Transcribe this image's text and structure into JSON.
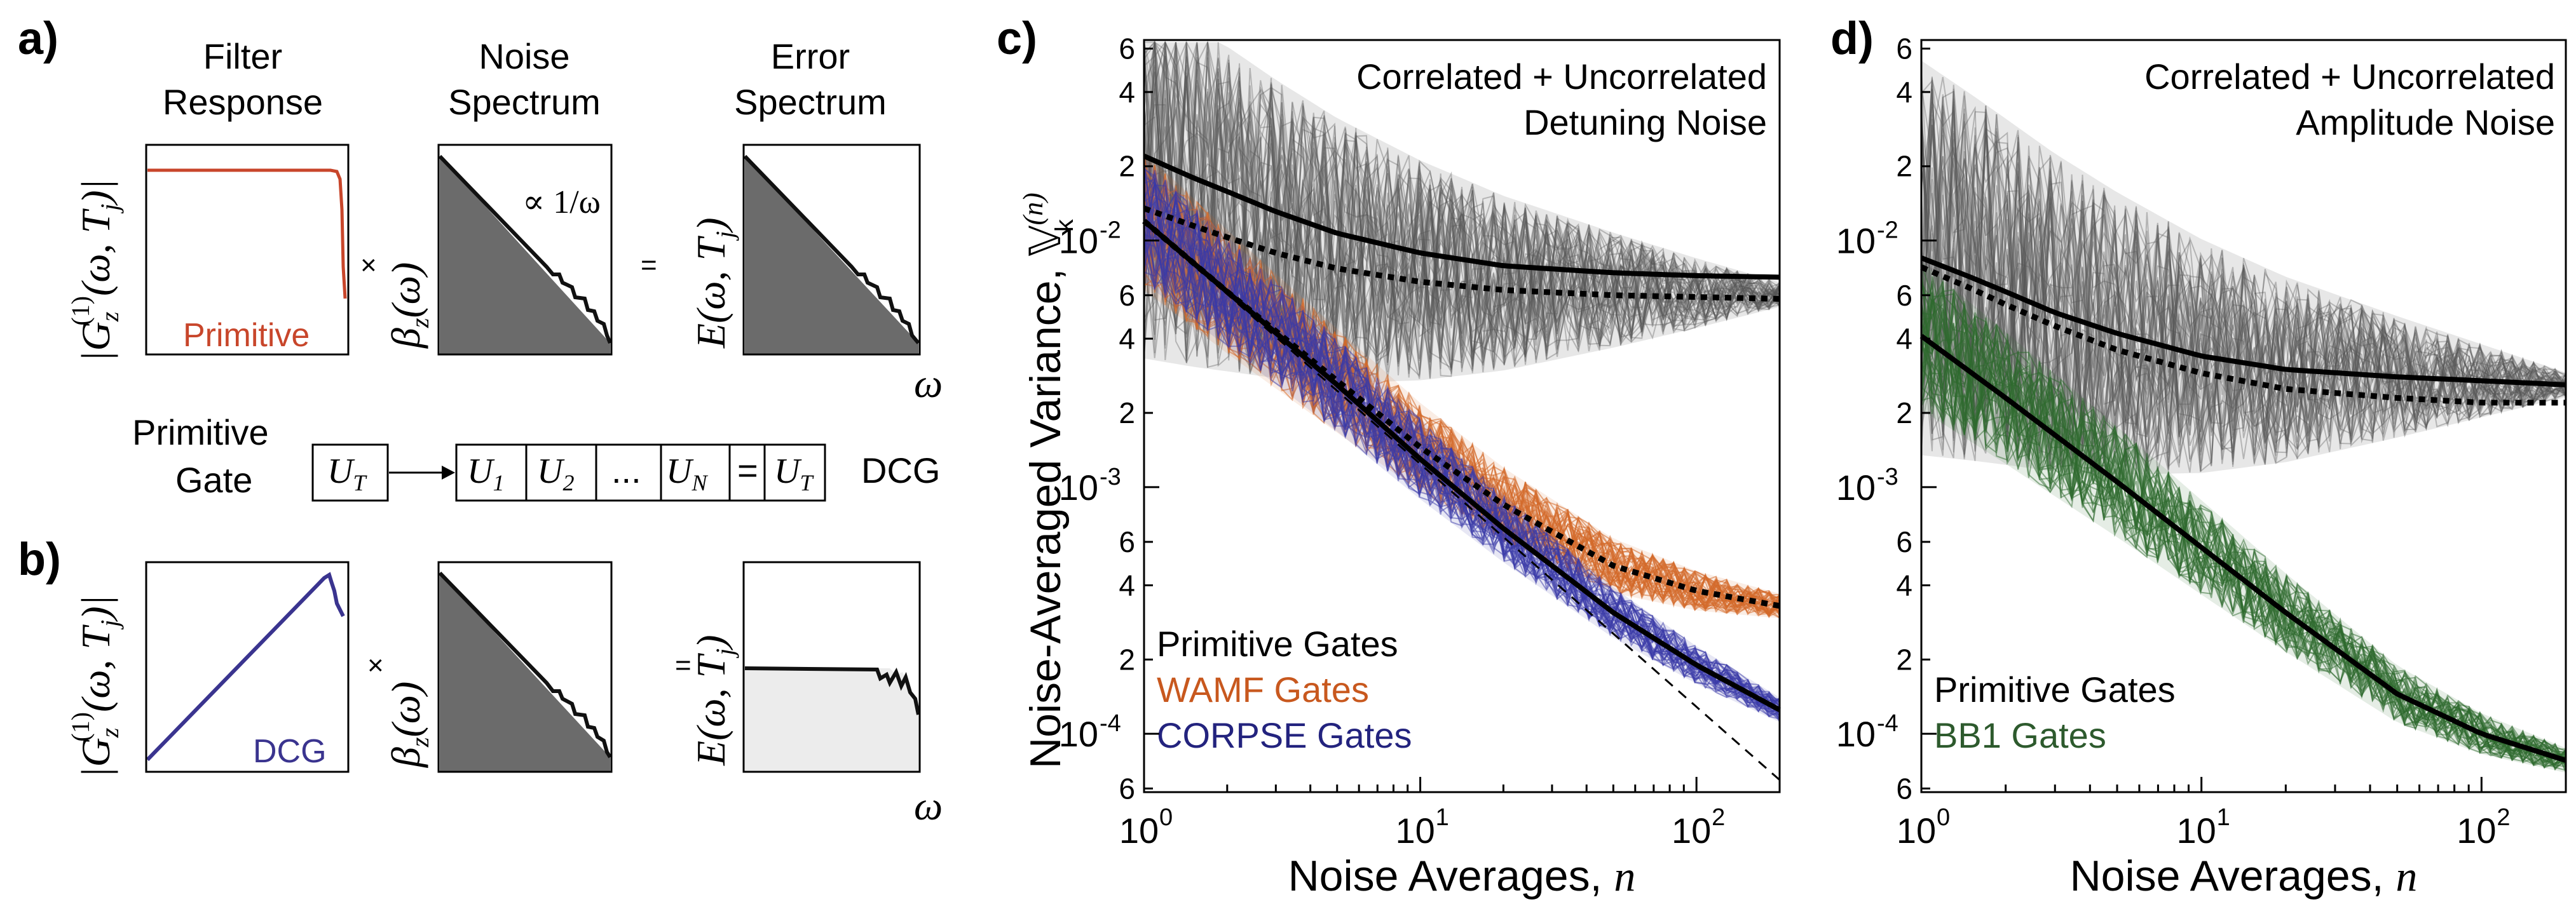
{
  "panel_a": {
    "label": "a)",
    "col1_title": [
      "Filter",
      "Response"
    ],
    "col2_title": [
      "Noise",
      "Spectrum"
    ],
    "col3_title": [
      "Error",
      "Spectrum"
    ],
    "filter_axis": "|G_z^(1)(ω, T_j)|",
    "filter_axis_g": "|G",
    "filter_axis_sub": "z",
    "filter_axis_sup": "(1)",
    "filter_axis_args": "(ω, T",
    "filter_axis_j": "j",
    "filter_axis_end": ")|",
    "noise_axis": "β_z(ω)",
    "noise_axis_b": "β",
    "noise_axis_sub": "z",
    "noise_axis_args": "(ω)",
    "error_axis": "E(ω, T_j)",
    "error_axis_e": "E(ω, T",
    "error_axis_j": "j",
    "error_axis_end": ")",
    "curve_label": "Primitive",
    "annotation": "∝ 1/ω",
    "times": "×",
    "equals": "=",
    "omega": "ω"
  },
  "middle_row": {
    "left_label": [
      "Primitive",
      "Gate"
    ],
    "box_ut": "U_T",
    "box_ut_u": "U",
    "box_ut_sub": "T",
    "box_u1_sub": "1",
    "box_u2_sub": "2",
    "box_dots": "...",
    "box_un_sub": "N",
    "equals": "=",
    "right_label": "DCG"
  },
  "panel_b": {
    "label": "b)",
    "curve_label": "DCG",
    "times": "×",
    "equals": "=",
    "omega": "ω"
  },
  "chart_data": [
    {
      "type": "line",
      "panel": "c)",
      "title": "Correlated + Uncorrelated Detuning Noise",
      "title_lines": [
        "Correlated + Uncorrelated",
        "Detuning Noise"
      ],
      "xlabel": "Noise Averages, n",
      "xlabel_text": "Noise Averages, ",
      "xlabel_var": "n",
      "ylabel": "Noise-Averaged Variance, V_k^(n)",
      "ylabel_text": "Noise-Averaged Variance, ",
      "ylabel_sym": "𝕍",
      "ylabel_sup": "(n)",
      "ylabel_sub": "k",
      "xscale": "log",
      "yscale": "log",
      "xlim": [
        1,
        200
      ],
      "ylim": [
        5.8e-05,
        0.065
      ],
      "x_ticks": [
        {
          "base": "10",
          "exp": "0"
        },
        {
          "base": "10",
          "exp": "1"
        },
        {
          "base": "10",
          "exp": "2"
        }
      ],
      "y_ticks": [
        "6",
        "4",
        "2",
        "10^-2",
        "6",
        "4",
        "2",
        "10^-3",
        "6",
        "4",
        "2",
        "10^-4",
        "6"
      ],
      "y_major_ticks": [
        {
          "base": "10",
          "exp": "-2"
        },
        {
          "base": "10",
          "exp": "-3"
        },
        {
          "base": "10",
          "exp": "-4"
        }
      ],
      "y_minor_ticks": [
        "6",
        "4",
        "2",
        "6",
        "4",
        "2",
        "6",
        "4",
        "2",
        "6"
      ],
      "legend": [
        {
          "label": "Primitive Gates",
          "color": "#000000"
        },
        {
          "label": "WAMF Gates",
          "color": "#c8581e"
        },
        {
          "label": "CORPSE Gates",
          "color": "#23237e"
        }
      ],
      "series": [
        {
          "name": "Primitive mean (solid)",
          "style": "solid",
          "color": "#000000",
          "x": [
            1,
            1.5,
            2,
            3,
            5,
            10,
            20,
            50,
            100,
            200
          ],
          "values": [
            0.022,
            0.018,
            0.0158,
            0.0131,
            0.0107,
            0.0089,
            0.0079,
            0.0074,
            0.0072,
            0.0071
          ]
        },
        {
          "name": "Primitive fit (dotted)",
          "style": "dotted",
          "color": "#000000",
          "x": [
            1,
            1.5,
            2,
            3,
            5,
            10,
            20,
            50,
            100,
            200
          ],
          "values": [
            0.0135,
            0.0115,
            0.0103,
            0.0089,
            0.0077,
            0.0068,
            0.0063,
            0.006,
            0.0059,
            0.0058
          ]
        },
        {
          "name": "WAMF fit (dotted)",
          "style": "dotted",
          "color": "#000000",
          "x": [
            1,
            2,
            5,
            10,
            20,
            50,
            100,
            200
          ],
          "values": [
            0.012,
            0.0062,
            0.0027,
            0.00145,
            0.00085,
            0.00048,
            0.00038,
            0.00033
          ]
        },
        {
          "name": "CORPSE fit (solid)",
          "style": "solid",
          "color": "#000000",
          "x": [
            1,
            2,
            5,
            10,
            20,
            50,
            100,
            200
          ],
          "values": [
            0.012,
            0.0062,
            0.0026,
            0.0013,
            0.00068,
            0.00031,
            0.00019,
            0.000125
          ]
        },
        {
          "name": "1/n reference (dashed)",
          "style": "dashed",
          "color": "#000000",
          "x": [
            1,
            200
          ],
          "values": [
            0.012,
            6.5e-05
          ]
        }
      ]
    },
    {
      "type": "line",
      "panel": "d)",
      "title": "Correlated + Uncorrelated Amplitude Noise",
      "title_lines": [
        "Correlated + Uncorrelated",
        "Amplitude Noise"
      ],
      "xlabel": "Noise Averages, n",
      "xlabel_text": "Noise Averages, ",
      "xlabel_var": "n",
      "xscale": "log",
      "yscale": "log",
      "xlim": [
        1,
        200
      ],
      "ylim": [
        5.8e-05,
        0.065
      ],
      "x_ticks": [
        {
          "base": "10",
          "exp": "0"
        },
        {
          "base": "10",
          "exp": "1"
        },
        {
          "base": "10",
          "exp": "2"
        }
      ],
      "y_ticks": [
        "6",
        "4",
        "2",
        "10^-2",
        "6",
        "4",
        "2",
        "10^-3",
        "6",
        "4",
        "2",
        "10^-4",
        "6"
      ],
      "y_major_ticks": [
        {
          "base": "10",
          "exp": "-2"
        },
        {
          "base": "10",
          "exp": "-3"
        },
        {
          "base": "10",
          "exp": "-4"
        }
      ],
      "y_minor_ticks": [
        "6",
        "4",
        "2",
        "6",
        "4",
        "2",
        "6",
        "4",
        "2",
        "6"
      ],
      "legend": [
        {
          "label": "Primitive Gates",
          "color": "#000000"
        },
        {
          "label": "BB1 Gates",
          "color": "#2d5a2d"
        }
      ],
      "series": [
        {
          "name": "Primitive mean (solid)",
          "style": "solid",
          "color": "#000000",
          "x": [
            1,
            1.5,
            2,
            3,
            5,
            10,
            20,
            50,
            100,
            200
          ],
          "values": [
            0.0085,
            0.0071,
            0.0062,
            0.0051,
            0.0042,
            0.0034,
            0.003,
            0.0028,
            0.0027,
            0.0026
          ]
        },
        {
          "name": "Primitive fit (dotted)",
          "style": "dotted",
          "color": "#000000",
          "x": [
            1,
            1.5,
            2,
            3,
            5,
            10,
            20,
            50,
            100,
            200
          ],
          "values": [
            0.0078,
            0.0064,
            0.0055,
            0.0045,
            0.0036,
            0.0029,
            0.0025,
            0.0023,
            0.0022,
            0.0022
          ]
        },
        {
          "name": "BB1 fit (solid)",
          "style": "solid",
          "color": "#000000",
          "x": [
            1,
            2,
            5,
            10,
            20,
            50,
            100,
            200
          ],
          "values": [
            0.0041,
            0.0023,
            0.00105,
            0.00057,
            0.00031,
            0.000145,
            0.0001,
            7.8e-05
          ]
        }
      ]
    }
  ]
}
